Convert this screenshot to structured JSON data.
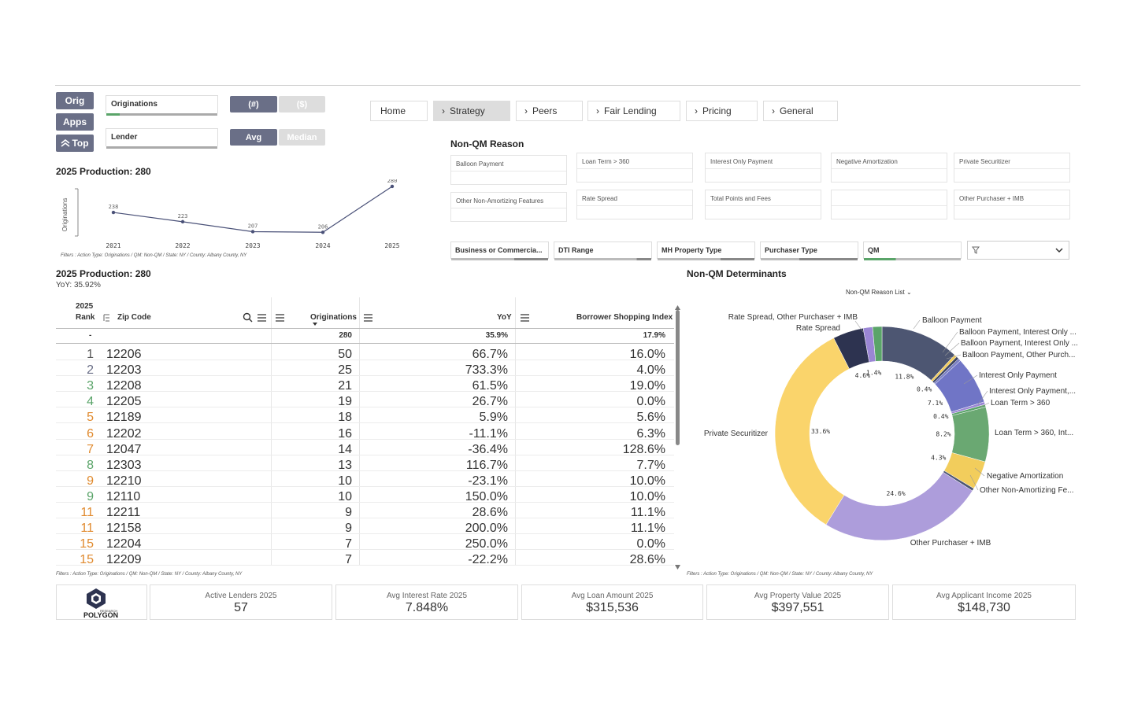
{
  "controls": {
    "orig": "Orig",
    "apps": "Apps",
    "top": "Top",
    "select1": "Originations",
    "select2": "Lender",
    "count_toggle": "(#)",
    "dollar_toggle": "($)",
    "avg_toggle": "Avg",
    "median_toggle": "Median"
  },
  "nav": [
    "Home",
    "Strategy",
    "Peers",
    "Fair Lending",
    "Pricing",
    "General"
  ],
  "line_chart": {
    "title": "2025 Production: 280",
    "ylabel": "Originations",
    "filters": "Filters : Action Type: Originations / QM: Non-QM / State: NY / County: Albany County, NY"
  },
  "nonqm_reason": {
    "title": "Non-QM Reason",
    "items": [
      "Balloon Payment",
      "Loan Term > 360",
      "Interest Only Payment",
      "Negative Amortization",
      "Private Securitizer",
      "Other Non-Amortizing Features",
      "Rate Spread",
      "Total Points and Fees",
      "",
      "Other Purchaser + IMB"
    ]
  },
  "dimensions": [
    "Business or Commercia...",
    "DTI Range",
    "MH Property Type",
    "Purchaser Type",
    "QM"
  ],
  "table": {
    "title": "2025 Production: 280",
    "yoy": "YoY: 35.92%",
    "headers": {
      "rank1": "2025",
      "rank2": "Rank",
      "zip": "Zip Code",
      "orig": "Originations",
      "yoy": "YoY",
      "bsi": "Borrower Shopping Index"
    },
    "totals": {
      "rank": "-",
      "orig": "280",
      "yoy": "35.9%",
      "bsi": "17.9%"
    },
    "rows": [
      {
        "rank": "1",
        "zip": "12206",
        "orig": "50",
        "yoy": "66.7%",
        "bsi": "16.0%"
      },
      {
        "rank": "2",
        "zip": "12203",
        "orig": "25",
        "yoy": "733.3%",
        "bsi": "4.0%"
      },
      {
        "rank": "3",
        "zip": "12208",
        "orig": "21",
        "yoy": "61.5%",
        "bsi": "19.0%"
      },
      {
        "rank": "4",
        "zip": "12205",
        "orig": "19",
        "yoy": "26.7%",
        "bsi": "0.0%"
      },
      {
        "rank": "5",
        "zip": "12189",
        "orig": "18",
        "yoy": "5.9%",
        "bsi": "5.6%"
      },
      {
        "rank": "6",
        "zip": "12202",
        "orig": "16",
        "yoy": "-11.1%",
        "bsi": "6.3%"
      },
      {
        "rank": "7",
        "zip": "12047",
        "orig": "14",
        "yoy": "-36.4%",
        "bsi": "128.6%"
      },
      {
        "rank": "8",
        "zip": "12303",
        "orig": "13",
        "yoy": "116.7%",
        "bsi": "7.7%"
      },
      {
        "rank": "9",
        "zip": "12210",
        "orig": "10",
        "yoy": "-23.1%",
        "bsi": "10.0%"
      },
      {
        "rank": "9",
        "zip": "12110",
        "orig": "10",
        "yoy": "150.0%",
        "bsi": "10.0%"
      },
      {
        "rank": "11",
        "zip": "12211",
        "orig": "9",
        "yoy": "28.6%",
        "bsi": "11.1%"
      },
      {
        "rank": "11",
        "zip": "12158",
        "orig": "9",
        "yoy": "200.0%",
        "bsi": "11.1%"
      },
      {
        "rank": "15",
        "zip": "12204",
        "orig": "7",
        "yoy": "250.0%",
        "bsi": "0.0%"
      },
      {
        "rank": "15",
        "zip": "12209",
        "orig": "7",
        "yoy": "-22.2%",
        "bsi": "28.6%"
      }
    ],
    "filters": "Filters : Action Type: Originations / QM: Non-QM / State: NY / County: Albany County, NY"
  },
  "donut": {
    "title": "Non-QM Determinants",
    "dropdown": "Non-QM Reason List",
    "filters": "Filters : Action Type: Originations / QM: Non-QM / State: NY / County: Albany County, NY"
  },
  "kpis": [
    {
      "title": "Active Lenders 2025",
      "value": "57"
    },
    {
      "title": "Avg Interest Rate 2025",
      "value": "7.848%"
    },
    {
      "title": "Avg Loan Amount 2025",
      "value": "$315,536"
    },
    {
      "title": "Avg Property Value 2025",
      "value": "$397,551"
    },
    {
      "title": "Avg Applicant Income 2025",
      "value": "$148,730"
    }
  ],
  "logo": {
    "text": "POLYGON",
    "sub": "RESEARCH"
  },
  "chart_data": [
    {
      "type": "line",
      "title": "2025 Production: 280",
      "ylabel": "Originations",
      "x": [
        "2021",
        "2022",
        "2023",
        "2024",
        "2025"
      ],
      "values": [
        238,
        223,
        207,
        206,
        280
      ],
      "color": "#4a5178"
    },
    {
      "type": "pie",
      "title": "Non-QM Determinants",
      "slices": [
        {
          "label": "Balloon Payment",
          "value": 11.8,
          "color": "#4d5672"
        },
        {
          "label": "Balloon Payment, Interest Only ...",
          "value": 0.4,
          "color": "#f2cd5c"
        },
        {
          "label": "Balloon Payment, Interest Only ...",
          "value": 0.4,
          "color": "#3d4560"
        },
        {
          "label": "Balloon Payment, Other Purch...",
          "value": 0.4,
          "color": "#7b7fc4"
        },
        {
          "label": "Interest Only Payment",
          "value": 7.1,
          "color": "#7075c6"
        },
        {
          "label": "Interest Only Payment,...",
          "value": 0.4,
          "color": "#9a86d4"
        },
        {
          "label": "Loan Term > 360",
          "value": 0.4,
          "color": "#5aa469"
        },
        {
          "label": "Loan Term > 360, Int...",
          "value": 8.2,
          "color": "#6aa872"
        },
        {
          "label": "Negative Amortization",
          "value": 4.3,
          "color": "#f2cd5c"
        },
        {
          "label": "Other Non-Amortizing Fe...",
          "value": 0.4,
          "color": "#4d5672"
        },
        {
          "label": "Other Purchaser + IMB",
          "value": 24.6,
          "color": "#ad9ddb"
        },
        {
          "label": "Private Securitizer",
          "value": 33.6,
          "color": "#fad46b"
        },
        {
          "label": "Rate Spread",
          "value": 4.6,
          "color": "#2d3350"
        },
        {
          "label": "Rate Spread, Other Purchaser + IMB",
          "value": 1.4,
          "color": "#9a86d4"
        },
        {
          "label": "",
          "value": 1.4,
          "color": "#5aa469"
        }
      ]
    }
  ]
}
